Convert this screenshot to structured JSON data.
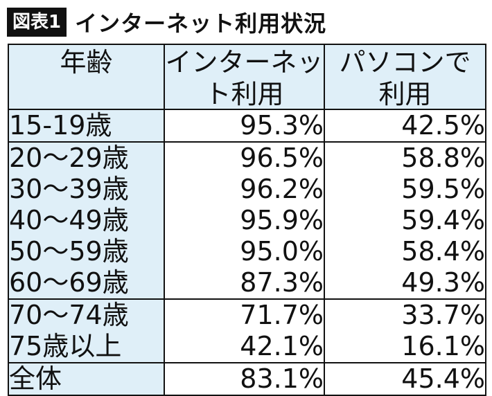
{
  "header": {
    "badge": "図表1",
    "title": "インターネット利用状況"
  },
  "chart_data": {
    "type": "table",
    "columns": [
      [
        "年齢"
      ],
      [
        "インターネッ",
        "ト利用"
      ],
      [
        "パソコンで",
        "利用"
      ]
    ],
    "groups": [
      {
        "rows": [
          {
            "age": "15-19歳",
            "internet": "95.3%",
            "pc": "42.5%"
          }
        ]
      },
      {
        "rows": [
          {
            "age": "20〜29歳",
            "internet": "96.5%",
            "pc": "58.8%"
          },
          {
            "age": "30〜39歳",
            "internet": "96.2%",
            "pc": "59.5%"
          },
          {
            "age": "40〜49歳",
            "internet": "95.9%",
            "pc": "59.4%"
          },
          {
            "age": "50〜59歳",
            "internet": "95.0%",
            "pc": "58.4%"
          },
          {
            "age": "60〜69歳",
            "internet": "87.3%",
            "pc": "49.3%"
          }
        ]
      },
      {
        "rows": [
          {
            "age": "70〜74歳",
            "internet": "71.7%",
            "pc": "33.7%"
          },
          {
            "age": "75歳以上",
            "internet": "42.1%",
            "pc": "16.1%"
          }
        ]
      },
      {
        "rows": [
          {
            "age": "全体",
            "internet": "83.1%",
            "pc": "45.4%"
          }
        ]
      }
    ],
    "colors": {
      "header_fill": "#dfeff8",
      "border": "#111111",
      "badge_fill": "#111111"
    }
  }
}
